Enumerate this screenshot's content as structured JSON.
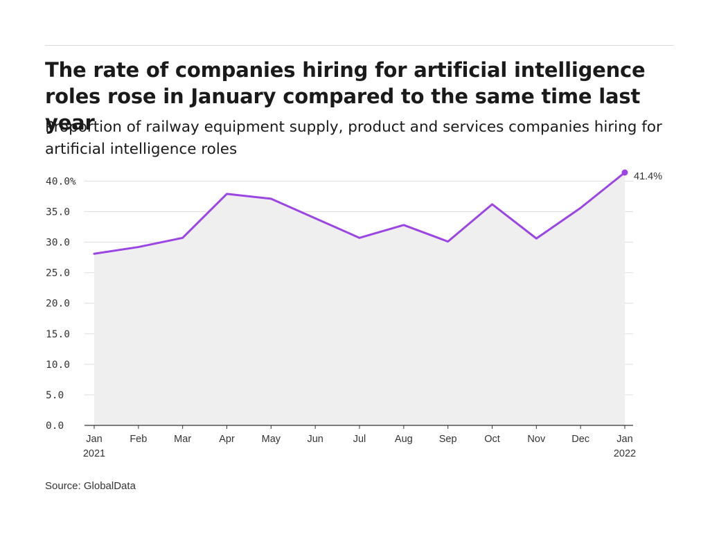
{
  "title": "The rate of companies hiring for artificial intelligence roles rose in January compared to the same time last year",
  "subtitle": "Proportion of railway equipment supply, product and services companies hiring for artificial intelligence roles",
  "source": "Source: GlobalData",
  "colors": {
    "line": "#9b45e4",
    "area": "#efefef",
    "grid": "#dddddd",
    "axis": "#333333"
  },
  "chart_data": {
    "type": "area",
    "categories": [
      "Jan",
      "Feb",
      "Mar",
      "Apr",
      "May",
      "Jun",
      "Jul",
      "Aug",
      "Sep",
      "Oct",
      "Nov",
      "Dec",
      "Jan"
    ],
    "category_sublabels": [
      "2021",
      "",
      "",
      "",
      "",
      "",
      "",
      "",
      "",
      "",
      "",
      "",
      "2022"
    ],
    "values": [
      28.1,
      29.2,
      30.7,
      37.9,
      37.1,
      33.9,
      30.7,
      32.8,
      30.1,
      36.2,
      30.6,
      35.6,
      41.4
    ],
    "yticks": [
      0,
      5,
      10,
      15,
      20,
      25,
      30,
      35,
      40
    ],
    "ytick_labels": [
      "0.0",
      "5.0",
      "10.0",
      "15.0",
      "20.0",
      "25.0",
      "30.0",
      "35.0",
      "40.0%"
    ],
    "ylim": [
      0,
      41.4
    ],
    "last_value_label": "41.4%",
    "grid": true
  }
}
